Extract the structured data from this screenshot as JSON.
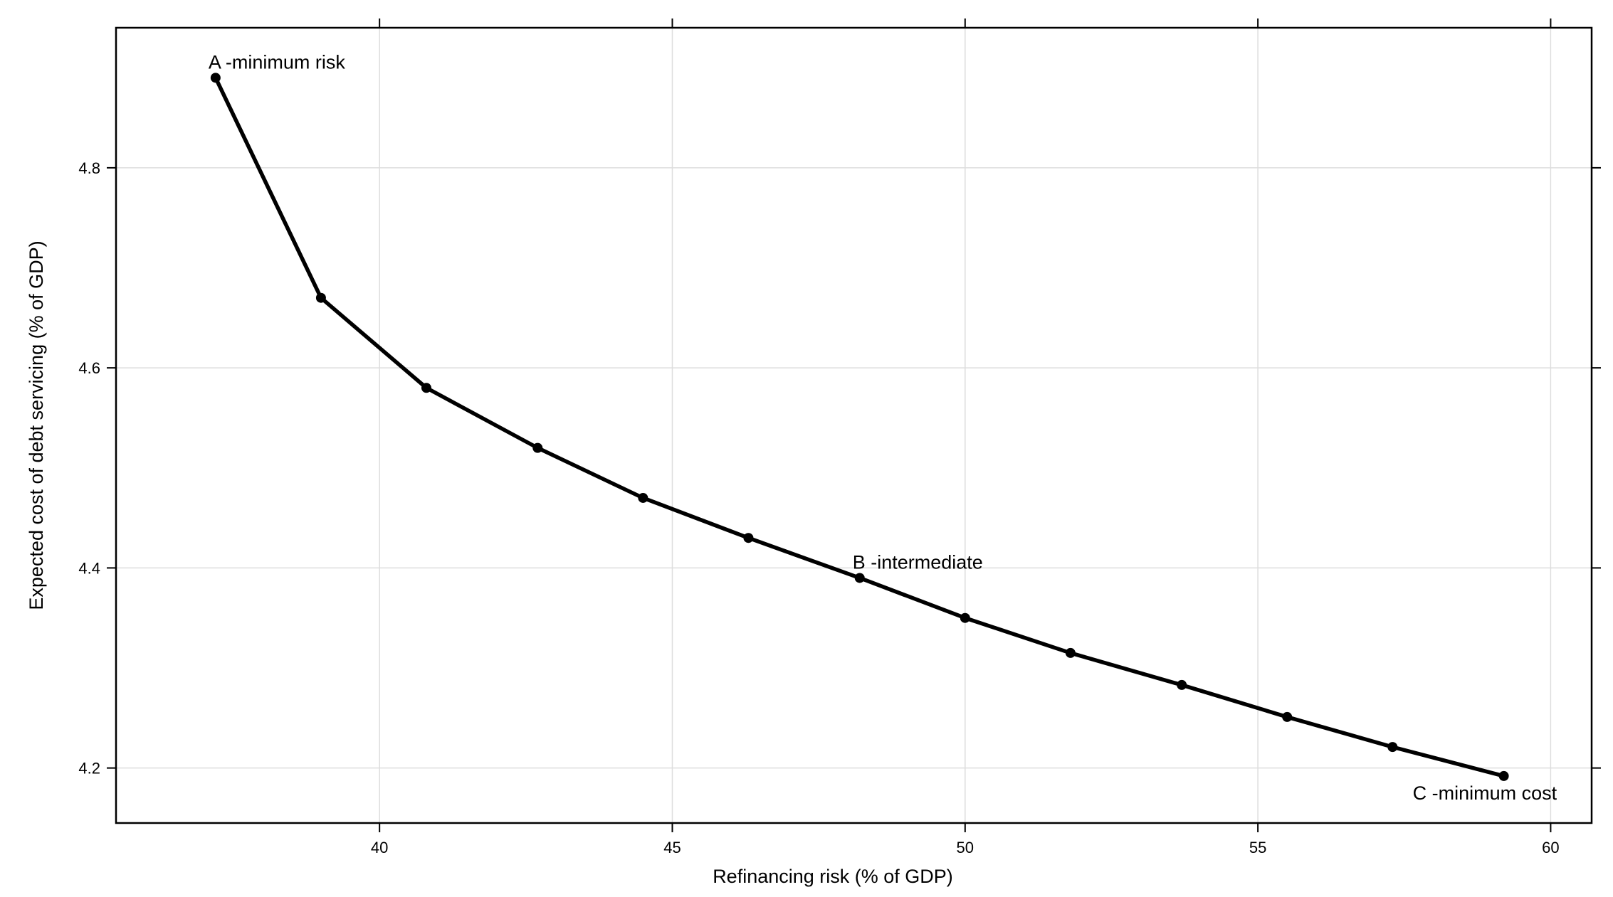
{
  "chart_data": {
    "type": "line",
    "title": "",
    "xlabel": "Refinancing risk (% of GDP)",
    "ylabel": "Expected cost of debt servicing (% of GDP)",
    "xlim": [
      35.5,
      60.7
    ],
    "ylim": [
      4.145,
      4.94
    ],
    "x_ticks": [
      40,
      45,
      50,
      55,
      60
    ],
    "x_tick_labels": [
      "40",
      "45",
      "50",
      "55",
      "60"
    ],
    "y_ticks": [
      4.2,
      4.4,
      4.6,
      4.8
    ],
    "y_tick_labels": [
      "4.2",
      "4.4",
      "4.6",
      "4.8"
    ],
    "grid": true,
    "series": [
      {
        "x": [
          37.2,
          39.0,
          40.8,
          42.7,
          44.5,
          46.3,
          48.2,
          50.0,
          51.8,
          53.7,
          55.5,
          57.3,
          59.2
        ],
        "y": [
          4.89,
          4.67,
          4.58,
          4.52,
          4.47,
          4.43,
          4.39,
          4.35,
          4.315,
          4.283,
          4.251,
          4.221,
          4.192
        ]
      }
    ],
    "annotations": [
      {
        "text": "A -minimum risk",
        "x": 37.2,
        "y": 4.89,
        "position": "above"
      },
      {
        "text": "B -intermediate",
        "x": 48.2,
        "y": 4.39,
        "position": "above"
      },
      {
        "text": "C -minimum cost",
        "x": 59.2,
        "y": 4.192,
        "position": "below"
      }
    ],
    "colors": {
      "line": "#000000",
      "grid": "#dddddd",
      "frame": "#000000"
    }
  }
}
